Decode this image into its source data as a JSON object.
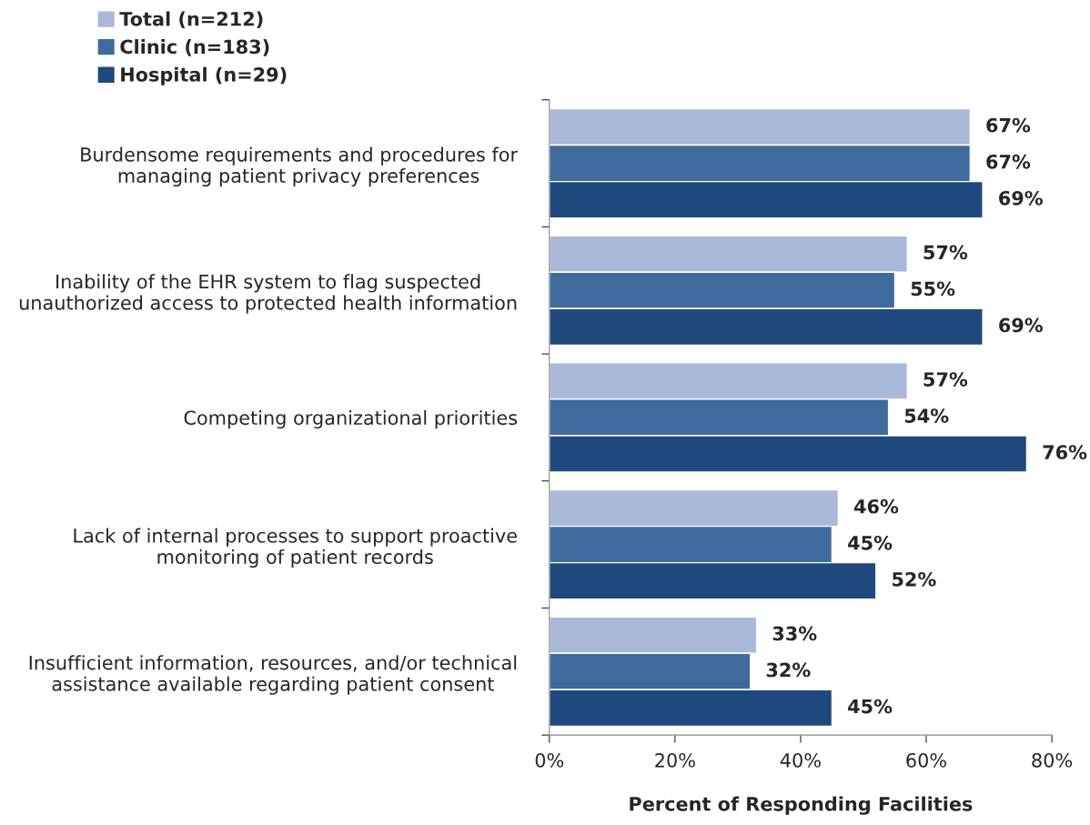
{
  "chart_data": {
    "type": "bar",
    "orientation": "horizontal",
    "xlabel": "Percent of Responding Facilities",
    "categories": [
      "Burdensome requirements and procedures for\nmanaging patient privacy preferences",
      "Inability of the EHR system to flag suspected\nunauthorized access to protected health information",
      "Competing organizational priorities",
      "Lack of internal processes to support proactive\nmonitoring of patient records",
      "Insufficient information, resources, and/or technical\nassistance available regarding patient consent"
    ],
    "series": [
      {
        "name": "Total (n=212)",
        "color": "#a9b9d9",
        "values": [
          67,
          57,
          57,
          46,
          33
        ],
        "value_labels": [
          "67%",
          "57%",
          "57%",
          "46%",
          "33%"
        ]
      },
      {
        "name": "Clinic (n=183)",
        "color": "#3f6b9c",
        "values": [
          67,
          55,
          54,
          45,
          32
        ],
        "value_labels": [
          "67%",
          "55%",
          "54%",
          "45%",
          "32%"
        ]
      },
      {
        "name": "Hospital (n=29)",
        "color": "#1f497d",
        "values": [
          69,
          69,
          76,
          52,
          45
        ],
        "value_labels": [
          "69%",
          "69%",
          "76%",
          "52%",
          "45%"
        ]
      }
    ],
    "xlim": [
      0,
      80
    ],
    "xticks": [
      {
        "value": 0,
        "label": "0%"
      },
      {
        "value": 20,
        "label": "20%"
      },
      {
        "value": 40,
        "label": "40%"
      },
      {
        "value": 60,
        "label": "60%"
      },
      {
        "value": 80,
        "label": "80%"
      }
    ],
    "grid": false,
    "legend": "top left"
  }
}
